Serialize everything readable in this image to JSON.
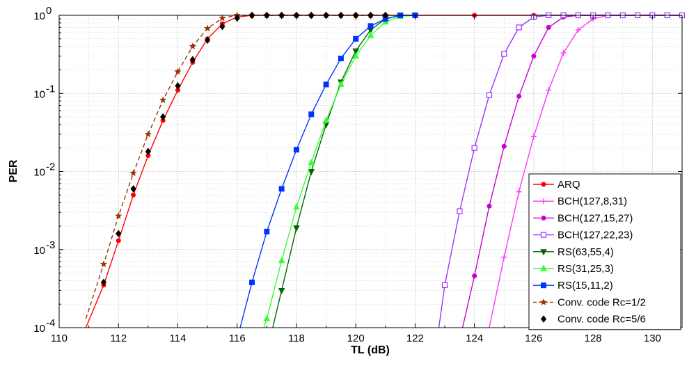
{
  "chart_data": {
    "type": "line",
    "xlabel": "TL (dB)",
    "ylabel": "PER",
    "xlim": [
      110,
      131
    ],
    "ylim": [
      0.0001,
      1
    ],
    "yscale": "log",
    "x_ticks": [
      110,
      112,
      114,
      116,
      118,
      120,
      122,
      124,
      126,
      128,
      130
    ],
    "y_ticks": [
      {
        "value": 0.0001,
        "base": "10",
        "exp": "-4"
      },
      {
        "value": 0.001,
        "base": "10",
        "exp": "-3"
      },
      {
        "value": 0.01,
        "base": "10",
        "exp": "-2"
      },
      {
        "value": 0.1,
        "base": "10",
        "exp": "-1"
      },
      {
        "value": 1,
        "base": "10",
        "exp": "0"
      }
    ],
    "grid": true,
    "legend": "bottom-right",
    "series": [
      {
        "name": "ARQ",
        "color": "#ff0000",
        "marker": "dot",
        "dash": false,
        "x": [
          110.9,
          111.5,
          112,
          112.5,
          113,
          113.5,
          114,
          114.5,
          115,
          115.5,
          116,
          116.5,
          117,
          117.5,
          118,
          118.5,
          119,
          119.5,
          120,
          120.5,
          121,
          122,
          124,
          126,
          128,
          131
        ],
        "y": [
          0.0001,
          0.00035,
          0.0013,
          0.005,
          0.016,
          0.045,
          0.11,
          0.25,
          0.5,
          0.78,
          0.95,
          1,
          1,
          1,
          1,
          1,
          1,
          1,
          1,
          1,
          1,
          1,
          1,
          1,
          1,
          1
        ]
      },
      {
        "name": "BCH(127,8,31)",
        "color": "#ff33ff",
        "marker": "plus",
        "dash": false,
        "x": [
          124.5,
          125,
          125.5,
          126,
          126.5,
          127,
          127.5,
          128,
          128.5,
          129,
          129.5,
          130,
          130.5,
          131
        ],
        "y": [
          0.0001,
          0.0008,
          0.0055,
          0.028,
          0.11,
          0.33,
          0.65,
          0.9,
          1,
          1,
          1,
          1,
          1,
          1
        ]
      },
      {
        "name": "BCH(127,15,27)",
        "color": "#cc00cc",
        "marker": "dot",
        "dash": false,
        "x": [
          123.6,
          124,
          124.5,
          125,
          125.5,
          126,
          126.5,
          127,
          127.5,
          128,
          128.5,
          129,
          129.5,
          130,
          130.5,
          131
        ],
        "y": [
          0.0001,
          0.00046,
          0.0036,
          0.021,
          0.092,
          0.3,
          0.7,
          0.95,
          1,
          1,
          1,
          1,
          1,
          1,
          1,
          1
        ]
      },
      {
        "name": "BCH(127,22,23)",
        "color": "#9933ff",
        "marker": "square-open",
        "dash": false,
        "x": [
          122.8,
          123,
          123.5,
          124,
          124.5,
          125,
          125.5,
          126,
          126.5,
          127,
          127.5,
          128,
          128.5,
          129,
          129.5,
          130,
          130.5,
          131
        ],
        "y": [
          0.0001,
          0.00035,
          0.0031,
          0.02,
          0.095,
          0.32,
          0.7,
          0.95,
          1,
          1,
          1,
          1,
          1,
          1,
          1,
          1,
          1,
          1
        ]
      },
      {
        "name": "RS(63,55,4)",
        "color": "#006600",
        "marker": "triangle-down",
        "dash": false,
        "x": [
          117.2,
          117.5,
          118,
          118.5,
          119,
          119.5,
          120,
          120.5,
          121,
          121.5,
          122
        ],
        "y": [
          0.0001,
          0.0003,
          0.0019,
          0.01,
          0.04,
          0.14,
          0.35,
          0.65,
          0.9,
          1,
          1
        ]
      },
      {
        "name": "RS(31,25,3)",
        "color": "#33ff33",
        "marker": "triangle-up",
        "dash": false,
        "x": [
          116.9,
          117,
          117.5,
          118,
          118.5,
          119,
          119.5,
          120,
          120.5,
          121,
          121.5,
          122
        ],
        "y": [
          0.0001,
          0.00013,
          0.00072,
          0.0035,
          0.013,
          0.045,
          0.13,
          0.3,
          0.55,
          0.82,
          0.97,
          1
        ]
      },
      {
        "name": "RS(15,11,2)",
        "color": "#0033ff",
        "marker": "square",
        "dash": false,
        "x": [
          116.1,
          116.5,
          117,
          117.5,
          118,
          118.5,
          119,
          119.5,
          120,
          120.5,
          121,
          121.5,
          122
        ],
        "y": [
          0.0001,
          0.00038,
          0.0017,
          0.006,
          0.019,
          0.054,
          0.13,
          0.28,
          0.5,
          0.73,
          0.9,
          1,
          1
        ]
      },
      {
        "name": "Conv. code Rc=1/2",
        "color": "#993300",
        "marker": "star",
        "dash": true,
        "x": [
          110.9,
          111.5,
          112,
          112.5,
          113,
          113.5,
          114,
          114.5,
          115,
          115.5,
          116,
          116.5,
          117,
          117.5,
          118,
          118.5,
          119,
          119.5,
          120,
          120.5,
          121
        ],
        "y": [
          0.00013,
          0.00065,
          0.0027,
          0.0095,
          0.03,
          0.082,
          0.19,
          0.4,
          0.68,
          0.92,
          1,
          1,
          1,
          1,
          1,
          1,
          1,
          1,
          1,
          1,
          1
        ]
      },
      {
        "name": "Conv. code Rc=5/6",
        "color": "#000000",
        "marker": "diamond",
        "dash": false,
        "line": false,
        "x": [
          111.5,
          112,
          112.5,
          113,
          113.5,
          114,
          114.5,
          115,
          115.5,
          116,
          116.5,
          117,
          117.5,
          118,
          118.5,
          119,
          119.5,
          120,
          120.5,
          121
        ],
        "y": [
          0.00038,
          0.0016,
          0.006,
          0.018,
          0.05,
          0.125,
          0.27,
          0.48,
          0.72,
          0.92,
          1,
          1,
          1,
          1,
          1,
          1,
          1,
          1,
          1,
          1
        ]
      }
    ]
  }
}
